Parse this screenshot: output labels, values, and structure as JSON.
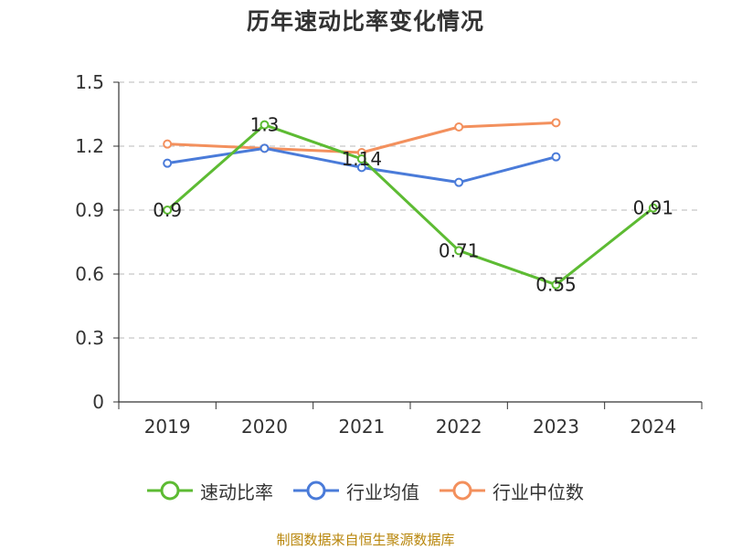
{
  "chart_data": {
    "type": "line",
    "title": "历年速动比率变化情况",
    "categories": [
      "2019",
      "2020",
      "2021",
      "2022",
      "2023",
      "2024"
    ],
    "y_ticks": [
      "0",
      "0.3",
      "0.6",
      "0.9",
      "1.2",
      "1.5"
    ],
    "ylim": [
      0,
      1.5
    ],
    "grid": true,
    "legend_position": "bottom",
    "series": [
      {
        "name": "速动比率",
        "color": "#5dbb33",
        "values": [
          0.9,
          1.3,
          1.14,
          0.71,
          0.55,
          0.91
        ],
        "labels": [
          "0.9",
          "1.3",
          "1.14",
          "0.71",
          "0.55",
          "0.91"
        ]
      },
      {
        "name": "行业均值",
        "color": "#4a7bd9",
        "values": [
          1.12,
          1.19,
          1.1,
          1.03,
          1.15,
          null
        ]
      },
      {
        "name": "行业中位数",
        "color": "#f3905d",
        "values": [
          1.21,
          1.19,
          1.17,
          1.29,
          1.31,
          null
        ]
      }
    ]
  },
  "footer": {
    "source": "制图数据来自恒生聚源数据库"
  }
}
